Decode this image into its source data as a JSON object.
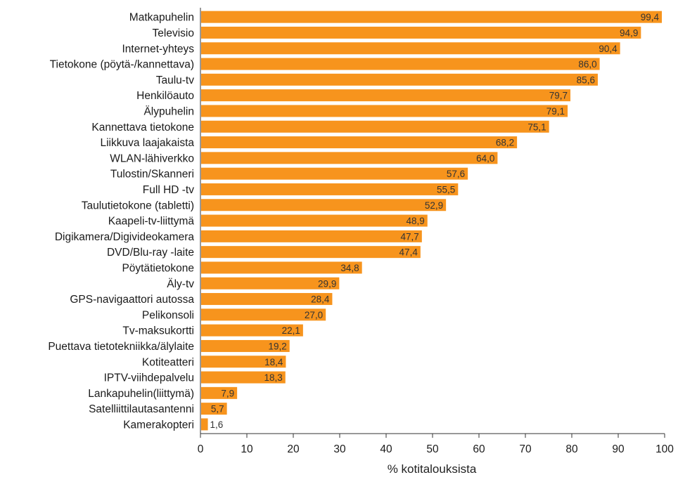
{
  "chart_data": {
    "type": "bar",
    "orientation": "horizontal",
    "title": "",
    "xlabel": "% kotitalouksista",
    "ylabel": "",
    "xlim": [
      0,
      100
    ],
    "x_ticks": [
      0,
      10,
      20,
      30,
      40,
      50,
      60,
      70,
      80,
      90,
      100
    ],
    "grid": false,
    "legend": "none",
    "bar_color": "#F7941D",
    "categories": [
      "Matkapuhelin",
      "Televisio",
      "Internet-yhteys",
      "Tietokone (pöytä-/kannettava)",
      "Taulu-tv",
      "Henkilöauto",
      "Älypuhelin",
      "Kannettava tietokone",
      "Liikkuva laajakaista",
      "WLAN-lähiverkko",
      "Tulostin/Skanneri",
      "Full HD -tv",
      "Taulutietokone (tabletti)",
      "Kaapeli-tv-liittymä",
      "Digikamera/Digivideokamera",
      "DVD/Blu-ray -laite",
      "Pöytätietokone",
      "Äly-tv",
      "GPS-navigaattori autossa",
      "Pelikonsoli",
      "Tv-maksukortti",
      "Puettava tietotekniikka/älylaite",
      "Kotiteatteri",
      "IPTV-viihdepalvelu",
      "Lankapuhelin(liittymä)",
      "Satelliittilautasantenni",
      "Kamerakopteri"
    ],
    "values": [
      99.4,
      94.9,
      90.4,
      86.0,
      85.6,
      79.7,
      79.1,
      75.1,
      68.2,
      64.0,
      57.6,
      55.5,
      52.9,
      48.9,
      47.7,
      47.4,
      34.8,
      29.9,
      28.4,
      27.0,
      22.1,
      19.2,
      18.4,
      18.3,
      7.9,
      5.7,
      1.6
    ],
    "value_labels": [
      "99,4",
      "94,9",
      "90,4",
      "86,0",
      "85,6",
      "79,7",
      "79,1",
      "75,1",
      "68,2",
      "64,0",
      "57,6",
      "55,5",
      "52,9",
      "48,9",
      "47,7",
      "47,4",
      "34,8",
      "29,9",
      "28,4",
      "27,0",
      "22,1",
      "19,2",
      "18,4",
      "18,3",
      "7,9",
      "5,7",
      "1,6"
    ]
  }
}
